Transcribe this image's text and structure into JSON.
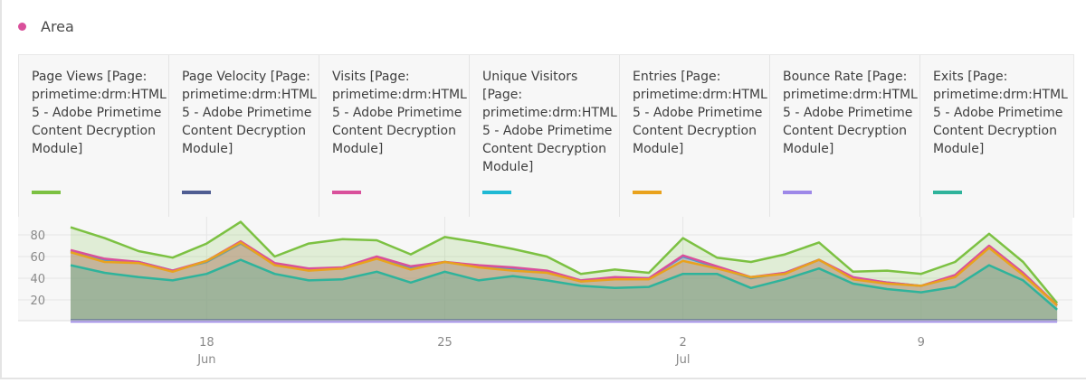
{
  "header": {
    "title": "Area",
    "dot_color": "#d9509b"
  },
  "chart_data": {
    "type": "area",
    "x": [
      "Jun 14",
      "Jun 15",
      "Jun 16",
      "Jun 17",
      "Jun 18",
      "Jun 19",
      "Jun 20",
      "Jun 21",
      "Jun 22",
      "Jun 23",
      "Jun 24",
      "Jun 25",
      "Jun 26",
      "Jun 27",
      "Jun 28",
      "Jun 29",
      "Jun 30",
      "Jul 1",
      "Jul 2",
      "Jul 3",
      "Jul 4",
      "Jul 5",
      "Jul 6",
      "Jul 7",
      "Jul 8",
      "Jul 9",
      "Jul 10",
      "Jul 11",
      "Jul 12",
      "Jul 13"
    ],
    "x_ticks": [
      {
        "day": "18",
        "month": "Jun",
        "index": 4
      },
      {
        "day": "25",
        "month": "",
        "index": 11
      },
      {
        "day": "2",
        "month": "Jul",
        "index": 18
      },
      {
        "day": "9",
        "month": "",
        "index": 25
      }
    ],
    "y_ticks": [
      "20",
      "40",
      "60",
      "80"
    ],
    "ylim": [
      0,
      100
    ],
    "grid": true,
    "legend_placement": "top",
    "series": [
      {
        "name": "Page Views [Page: primetime:drm:HTML5 - Adobe Primetime Content Decryption Module]",
        "color": "#7cc142",
        "values": [
          87,
          77,
          65,
          59,
          72,
          92,
          60,
          72,
          76,
          75,
          62,
          78,
          73,
          67,
          60,
          44,
          48,
          45,
          77,
          59,
          55,
          62,
          73,
          46,
          47,
          44,
          55,
          81,
          55,
          17
        ]
      },
      {
        "name": "Page Velocity [Page: primetime:drm:HTML5 - Adobe Primetime Content Decryption Module]",
        "color": "#4f5d92",
        "values": [
          1,
          1,
          1,
          1,
          1,
          1,
          1,
          1,
          1,
          1,
          1,
          1,
          1,
          1,
          1,
          1,
          1,
          1,
          1,
          1,
          1,
          1,
          1,
          1,
          1,
          1,
          1,
          1,
          1,
          1
        ]
      },
      {
        "name": "Visits [Page: primetime:drm:HTML5 - Adobe Primetime Content Decryption Module]",
        "color": "#d9509b",
        "values": [
          66,
          58,
          55,
          47,
          56,
          74,
          54,
          49,
          50,
          60,
          51,
          55,
          52,
          50,
          47,
          38,
          41,
          40,
          61,
          51,
          41,
          45,
          57,
          41,
          36,
          33,
          43,
          70,
          45,
          15
        ]
      },
      {
        "name": "Unique Visitors [Page: primetime:drm:HTML5 - Adobe Primetime Content Decryption Module]",
        "color": "#1fb9d4",
        "values": [
          65,
          57,
          55,
          47,
          55,
          72,
          53,
          48,
          49,
          59,
          50,
          55,
          51,
          49,
          46,
          37,
          40,
          40,
          60,
          50,
          40,
          45,
          57,
          40,
          36,
          33,
          42,
          69,
          44,
          15
        ]
      },
      {
        "name": "Entries [Page: primetime:drm:HTML5 - Adobe Primetime Content Decryption Module]",
        "color": "#e9a21d",
        "values": [
          64,
          55,
          54,
          46,
          56,
          73,
          52,
          47,
          49,
          58,
          48,
          55,
          50,
          47,
          45,
          37,
          39,
          39,
          56,
          49,
          41,
          44,
          57,
          39,
          35,
          33,
          41,
          68,
          43,
          15
        ]
      },
      {
        "name": "Bounce Rate [Page: primetime:drm:HTML5 - Adobe Primetime Content Decryption Module]",
        "color": "#9d88e8",
        "values": [
          0,
          0,
          0,
          0,
          0,
          0,
          0,
          0,
          0,
          0,
          0,
          0,
          0,
          0,
          0,
          0,
          0,
          0,
          0,
          0,
          0,
          0,
          0,
          0,
          0,
          0,
          0,
          0,
          0,
          0
        ]
      },
      {
        "name": "Exits [Page: primetime:drm:HTML5 - Adobe Primetime Content Decryption Module]",
        "color": "#2fb39b",
        "values": [
          52,
          45,
          41,
          38,
          44,
          57,
          44,
          38,
          39,
          46,
          36,
          46,
          38,
          42,
          38,
          33,
          31,
          32,
          44,
          44,
          31,
          39,
          49,
          35,
          30,
          27,
          32,
          52,
          38,
          11
        ]
      }
    ]
  }
}
